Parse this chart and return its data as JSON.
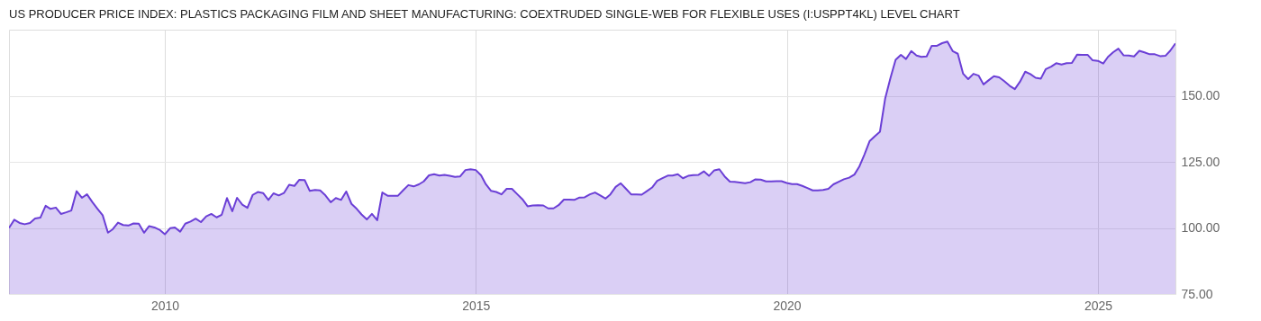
{
  "chart_data": {
    "type": "area",
    "title": "US PRODUCER PRICE INDEX: PLASTICS PACKAGING FILM AND SHEET MANUFACTURING: COEXTRUDED SINGLE-WEB FOR FLEXIBLE USES (I:USPPT4KL) LEVEL CHART",
    "x": [
      "2007-07",
      "2007-08",
      "2007-09",
      "2007-10",
      "2007-11",
      "2007-12",
      "2008-01",
      "2008-02",
      "2008-03",
      "2008-04",
      "2008-05",
      "2008-06",
      "2008-07",
      "2008-08",
      "2008-09",
      "2008-10",
      "2008-11",
      "2008-12",
      "2009-01",
      "2009-02",
      "2009-03",
      "2009-04",
      "2009-05",
      "2009-06",
      "2009-07",
      "2009-08",
      "2009-09",
      "2009-10",
      "2009-11",
      "2009-12",
      "2010-01",
      "2010-02",
      "2010-03",
      "2010-04",
      "2010-05",
      "2010-06",
      "2010-07",
      "2010-08",
      "2010-09",
      "2010-10",
      "2010-11",
      "2010-12",
      "2011-01",
      "2011-02",
      "2011-03",
      "2011-04",
      "2011-05",
      "2011-06",
      "2011-07",
      "2011-08",
      "2011-09",
      "2011-10",
      "2011-11",
      "2011-12",
      "2012-01",
      "2012-02",
      "2012-03",
      "2012-04",
      "2012-05",
      "2012-06",
      "2012-07",
      "2012-08",
      "2012-09",
      "2012-10",
      "2012-11",
      "2012-12",
      "2013-01",
      "2013-02",
      "2013-03",
      "2013-04",
      "2013-05",
      "2013-06",
      "2013-07",
      "2013-08",
      "2013-10",
      "2013-11",
      "2013-12",
      "2014-01",
      "2014-02",
      "2014-03",
      "2014-04",
      "2014-05",
      "2014-06",
      "2014-07",
      "2014-08",
      "2014-09",
      "2014-10",
      "2014-11",
      "2014-12",
      "2015-01",
      "2015-02",
      "2015-03",
      "2015-04",
      "2015-05",
      "2015-06",
      "2015-07",
      "2015-08",
      "2015-09",
      "2015-10",
      "2015-11",
      "2015-12",
      "2016-01",
      "2016-02",
      "2016-03",
      "2016-04",
      "2016-05",
      "2016-06",
      "2016-07",
      "2016-08",
      "2016-09",
      "2016-10",
      "2016-11",
      "2016-12",
      "2017-01",
      "2017-02",
      "2017-03",
      "2017-04",
      "2017-05",
      "2017-06",
      "2017-07",
      "2017-08",
      "2017-09",
      "2017-10",
      "2017-11",
      "2017-12",
      "2018-01",
      "2018-02",
      "2018-03",
      "2018-04",
      "2018-05",
      "2018-06",
      "2018-07",
      "2018-08",
      "2018-09",
      "2018-10",
      "2018-11",
      "2018-12",
      "2019-01",
      "2019-02",
      "2019-03",
      "2019-04",
      "2019-05",
      "2019-06",
      "2019-07",
      "2019-08",
      "2019-09",
      "2019-10",
      "2019-11",
      "2019-12",
      "2020-01",
      "2020-02",
      "2020-03",
      "2020-04",
      "2020-05",
      "2020-06",
      "2020-07",
      "2020-08",
      "2020-09",
      "2020-10",
      "2020-11",
      "2020-12",
      "2021-01",
      "2021-02",
      "2021-03",
      "2021-04",
      "2021-05",
      "2021-06",
      "2021-07",
      "2021-08",
      "2021-09",
      "2021-10",
      "2021-11",
      "2021-12",
      "2022-01",
      "2022-02",
      "2022-03",
      "2022-04",
      "2022-05",
      "2022-06",
      "2022-07",
      "2022-08",
      "2022-09",
      "2022-10",
      "2022-11",
      "2022-12",
      "2023-01",
      "2023-02",
      "2023-03",
      "2023-04",
      "2023-05",
      "2023-06",
      "2023-07",
      "2023-08",
      "2023-09",
      "2023-10",
      "2023-11",
      "2023-12",
      "2024-01",
      "2024-02",
      "2024-03",
      "2024-04",
      "2024-05",
      "2024-06",
      "2024-07",
      "2024-08",
      "2024-09",
      "2024-10",
      "2024-11",
      "2024-12",
      "2025-01",
      "2025-02",
      "2025-03",
      "2025-04",
      "2025-05",
      "2025-06",
      "2025-07",
      "2025-08",
      "2025-09",
      "2025-10",
      "2025-11",
      "2025-12",
      "2026-01",
      "2026-02",
      "2026-03",
      "2026-04"
    ],
    "series": [
      {
        "color": "#6b3fd6",
        "values": [
          100.0,
          103.1,
          101.9,
          101.4,
          101.9,
          103.6,
          103.9,
          108.4,
          107.2,
          107.7,
          105.3,
          105.9,
          106.6,
          113.9,
          111.4,
          112.7,
          109.8,
          107.3,
          104.8,
          98.2,
          99.5,
          102.0,
          101.1,
          100.9,
          101.7,
          101.6,
          98.2,
          100.7,
          100.2,
          99.3,
          97.6,
          99.9,
          100.2,
          98.6,
          101.6,
          102.4,
          103.5,
          102.2,
          104.4,
          105.3,
          104.0,
          105.0,
          111.3,
          106.3,
          111.4,
          108.8,
          107.6,
          112.5,
          113.6,
          113.2,
          110.6,
          113.1,
          112.3,
          113.2,
          116.3,
          115.9,
          118.2,
          118.1,
          114.0,
          114.4,
          114.2,
          112.3,
          109.7,
          111.3,
          110.6,
          113.8,
          109.1,
          107.2,
          105.1,
          103.2,
          105.3,
          102.9,
          113.4,
          112.2,
          112.2,
          114.3,
          116.2,
          115.7,
          116.5,
          117.6,
          119.9,
          120.3,
          119.8,
          120.1,
          119.7,
          119.3,
          119.5,
          121.9,
          122.2,
          121.9,
          119.9,
          116.5,
          114.0,
          113.6,
          112.7,
          114.8,
          114.8,
          112.8,
          110.9,
          108.2,
          108.5,
          108.6,
          108.5,
          107.4,
          107.4,
          108.6,
          110.7,
          110.7,
          110.6,
          111.5,
          111.6,
          112.7,
          113.4,
          112.3,
          111.1,
          112.7,
          115.5,
          116.9,
          114.8,
          112.7,
          112.7,
          112.6,
          113.9,
          115.3,
          117.8,
          118.8,
          119.8,
          119.8,
          120.3,
          118.8,
          119.7,
          120.0,
          120.1,
          121.4,
          119.7,
          121.8,
          122.2,
          119.5,
          117.5,
          117.4,
          117.2,
          116.9,
          117.3,
          118.4,
          118.3,
          117.6,
          117.6,
          117.7,
          117.7,
          117.0,
          116.6,
          116.6,
          115.9,
          115.1,
          114.2,
          114.2,
          114.4,
          114.8,
          116.5,
          117.5,
          118.4,
          119.0,
          120.2,
          123.1,
          127.8,
          132.8,
          134.7,
          136.4,
          149.1,
          156.8,
          163.6,
          165.5,
          163.9,
          166.9,
          165.2,
          164.7,
          164.9,
          168.9,
          168.9,
          169.9,
          170.5,
          166.9,
          165.9,
          158.4,
          156.3,
          158.3,
          157.6,
          154.3,
          155.9,
          157.4,
          157.0,
          155.5,
          153.8,
          152.5,
          155.3,
          159.1,
          158.2,
          156.8,
          156.5,
          160.1,
          161.0,
          162.3,
          161.8,
          162.3,
          162.4,
          165.6,
          165.5,
          165.5,
          163.4,
          163.2,
          162.2,
          164.7,
          166.5,
          167.8,
          165.3,
          165.2,
          164.9,
          167.0,
          166.4,
          165.7,
          165.7,
          165.0,
          165.1,
          167.0,
          169.8
        ]
      }
    ],
    "xlim": [
      "2007-07",
      "2026-04"
    ],
    "xticks": [
      "2010",
      "2015",
      "2020",
      "2025"
    ],
    "ylim": [
      75,
      175
    ],
    "yticks": [
      {
        "value": 75,
        "label": "75.00"
      },
      {
        "value": 100,
        "label": "100.00"
      },
      {
        "value": 125,
        "label": "125.00"
      },
      {
        "value": 150,
        "label": "150.00"
      }
    ],
    "grid": true
  }
}
